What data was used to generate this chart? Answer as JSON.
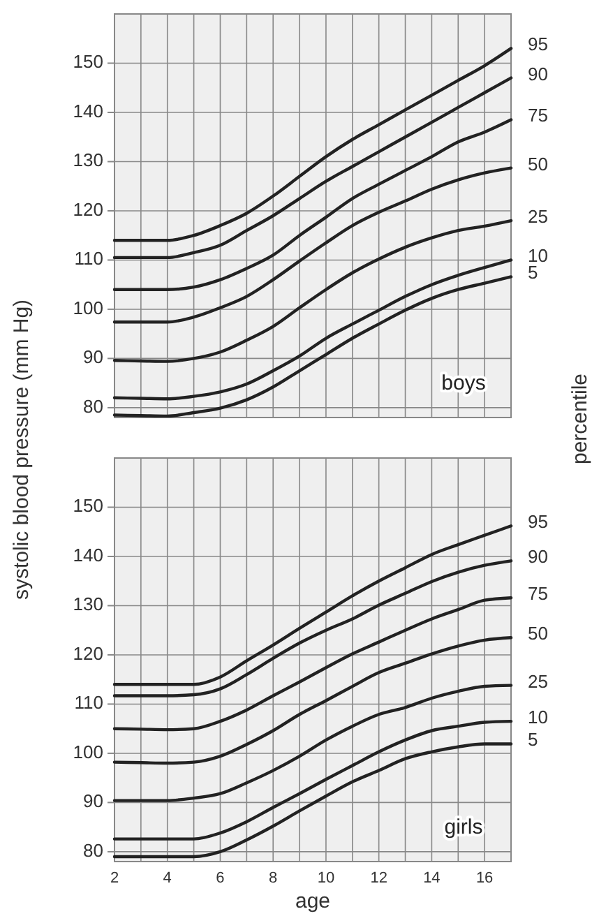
{
  "chart_data": [
    {
      "type": "line",
      "title": "boys",
      "ylabel": "systolic blood pressure (mm Hg)",
      "legend_title": "percentile",
      "x": [
        2,
        3,
        4,
        5,
        6,
        7,
        8,
        9,
        10,
        11,
        12,
        13,
        14,
        15,
        16,
        17
      ],
      "xlim": [
        2,
        17
      ],
      "xticks": [
        2,
        {
          "value": 3,
          "label": null
        },
        4,
        {
          "value": 5,
          "label": null
        },
        6,
        {
          "value": 7,
          "label": null
        },
        8,
        {
          "value": 9,
          "label": null
        },
        10,
        {
          "value": 11,
          "label": null
        },
        12,
        {
          "value": 13,
          "label": null
        },
        14,
        {
          "value": 15,
          "label": null
        },
        16,
        {
          "value": 17,
          "label": null
        }
      ],
      "ylim": [
        78,
        160
      ],
      "yticks": [
        80,
        90,
        100,
        110,
        120,
        130,
        140,
        150
      ],
      "tick_labels": "y",
      "grid": true,
      "line_style": "solid",
      "marker": "none",
      "series": [
        {
          "name": "95",
          "color": "#222222",
          "values": [
            114,
            114,
            114,
            115,
            117,
            119.5,
            123,
            127,
            131,
            134.5,
            137.5,
            140.5,
            143.5,
            146.5,
            149.5,
            153
          ]
        },
        {
          "name": "90",
          "color": "#222222",
          "values": [
            110.5,
            110.5,
            110.5,
            111.5,
            113,
            116,
            119,
            122.5,
            126,
            129,
            132,
            135,
            138,
            141,
            144,
            147
          ]
        },
        {
          "name": "75",
          "color": "#222222",
          "values": [
            104,
            104,
            104,
            104.5,
            106,
            108.3,
            111,
            115,
            118.7,
            122.5,
            125.4,
            128.2,
            131,
            134,
            136,
            138.5
          ]
        },
        {
          "name": "50",
          "color": "#222222",
          "values": [
            97.4,
            97.4,
            97.4,
            98.4,
            100.3,
            102.6,
            106,
            109.8,
            113.5,
            117,
            119.7,
            122,
            124.4,
            126.3,
            127.7,
            128.7
          ]
        },
        {
          "name": "25",
          "color": "#222222",
          "values": [
            89.6,
            89.5,
            89.4,
            90,
            91.3,
            93.7,
            96.5,
            100.3,
            104,
            107.4,
            110.2,
            112.6,
            114.5,
            116,
            116.9,
            118
          ]
        },
        {
          "name": "10",
          "color": "#222222",
          "values": [
            82,
            81.9,
            81.8,
            82.3,
            83.2,
            84.8,
            87.5,
            90.5,
            94.1,
            97,
            99.8,
            102.6,
            105,
            106.9,
            108.5,
            110
          ]
        },
        {
          "name": "5",
          "color": "#222222",
          "values": [
            78.5,
            78.4,
            78.3,
            79,
            79.9,
            81.6,
            84.2,
            87.5,
            90.8,
            94.1,
            97,
            99.8,
            102.2,
            104,
            105.3,
            106.6
          ]
        }
      ]
    },
    {
      "type": "line",
      "title": "girls",
      "xlabel": "age",
      "x": [
        2,
        3,
        4,
        5,
        6,
        7,
        8,
        9,
        10,
        11,
        12,
        13,
        14,
        15,
        16,
        17
      ],
      "xlim": [
        2,
        17
      ],
      "xticks": [
        2,
        {
          "value": 3,
          "label": null
        },
        4,
        {
          "value": 5,
          "label": null
        },
        6,
        {
          "value": 7,
          "label": null
        },
        8,
        {
          "value": 9,
          "label": null
        },
        10,
        {
          "value": 11,
          "label": null
        },
        12,
        {
          "value": 13,
          "label": null
        },
        14,
        {
          "value": 15,
          "label": null
        },
        16,
        {
          "value": 17,
          "label": null
        }
      ],
      "ylim": [
        78,
        160
      ],
      "yticks": [
        80,
        90,
        100,
        110,
        120,
        130,
        140,
        150
      ],
      "grid": true,
      "line_style": "solid",
      "marker": "none",
      "series": [
        {
          "name": "95",
          "color": "#222222",
          "values": [
            114,
            114,
            114,
            114,
            115.5,
            118.8,
            122,
            125.4,
            128.7,
            132,
            135,
            137.7,
            140.4,
            142.4,
            144.3,
            146.2
          ]
        },
        {
          "name": "90",
          "color": "#222222",
          "values": [
            111.7,
            111.7,
            111.7,
            111.9,
            113.1,
            116,
            119.3,
            122.4,
            125,
            127.3,
            130.1,
            132.5,
            134.9,
            136.8,
            138.2,
            139.1
          ]
        },
        {
          "name": "75",
          "color": "#222222",
          "values": [
            105,
            104.9,
            104.8,
            105,
            106.5,
            108.8,
            111.7,
            114.5,
            117.4,
            120.2,
            122.6,
            125,
            127.3,
            129.2,
            131.1,
            131.6
          ]
        },
        {
          "name": "50",
          "color": "#222222",
          "values": [
            98.2,
            98.1,
            98,
            98.2,
            99.4,
            101.8,
            104.6,
            107.9,
            110.7,
            113.6,
            116.4,
            118.3,
            120.2,
            121.8,
            123,
            123.5
          ]
        },
        {
          "name": "25",
          "color": "#222222",
          "values": [
            90.4,
            90.4,
            90.4,
            90.9,
            91.8,
            94,
            96.5,
            99.4,
            102.7,
            105.5,
            107.9,
            109.3,
            111.2,
            112.6,
            113.6,
            113.8
          ]
        },
        {
          "name": "10",
          "color": "#222222",
          "values": [
            82.6,
            82.6,
            82.6,
            82.6,
            83.8,
            86.1,
            89,
            91.8,
            94.7,
            97.5,
            100.3,
            102.7,
            104.6,
            105.5,
            106.3,
            106.5
          ]
        },
        {
          "name": "5",
          "color": "#222222",
          "values": [
            79,
            79,
            79,
            79,
            80,
            82.4,
            85.2,
            88.3,
            91.3,
            94.2,
            96.5,
            98.9,
            100.3,
            101.3,
            101.9,
            101.9
          ]
        }
      ]
    }
  ]
}
